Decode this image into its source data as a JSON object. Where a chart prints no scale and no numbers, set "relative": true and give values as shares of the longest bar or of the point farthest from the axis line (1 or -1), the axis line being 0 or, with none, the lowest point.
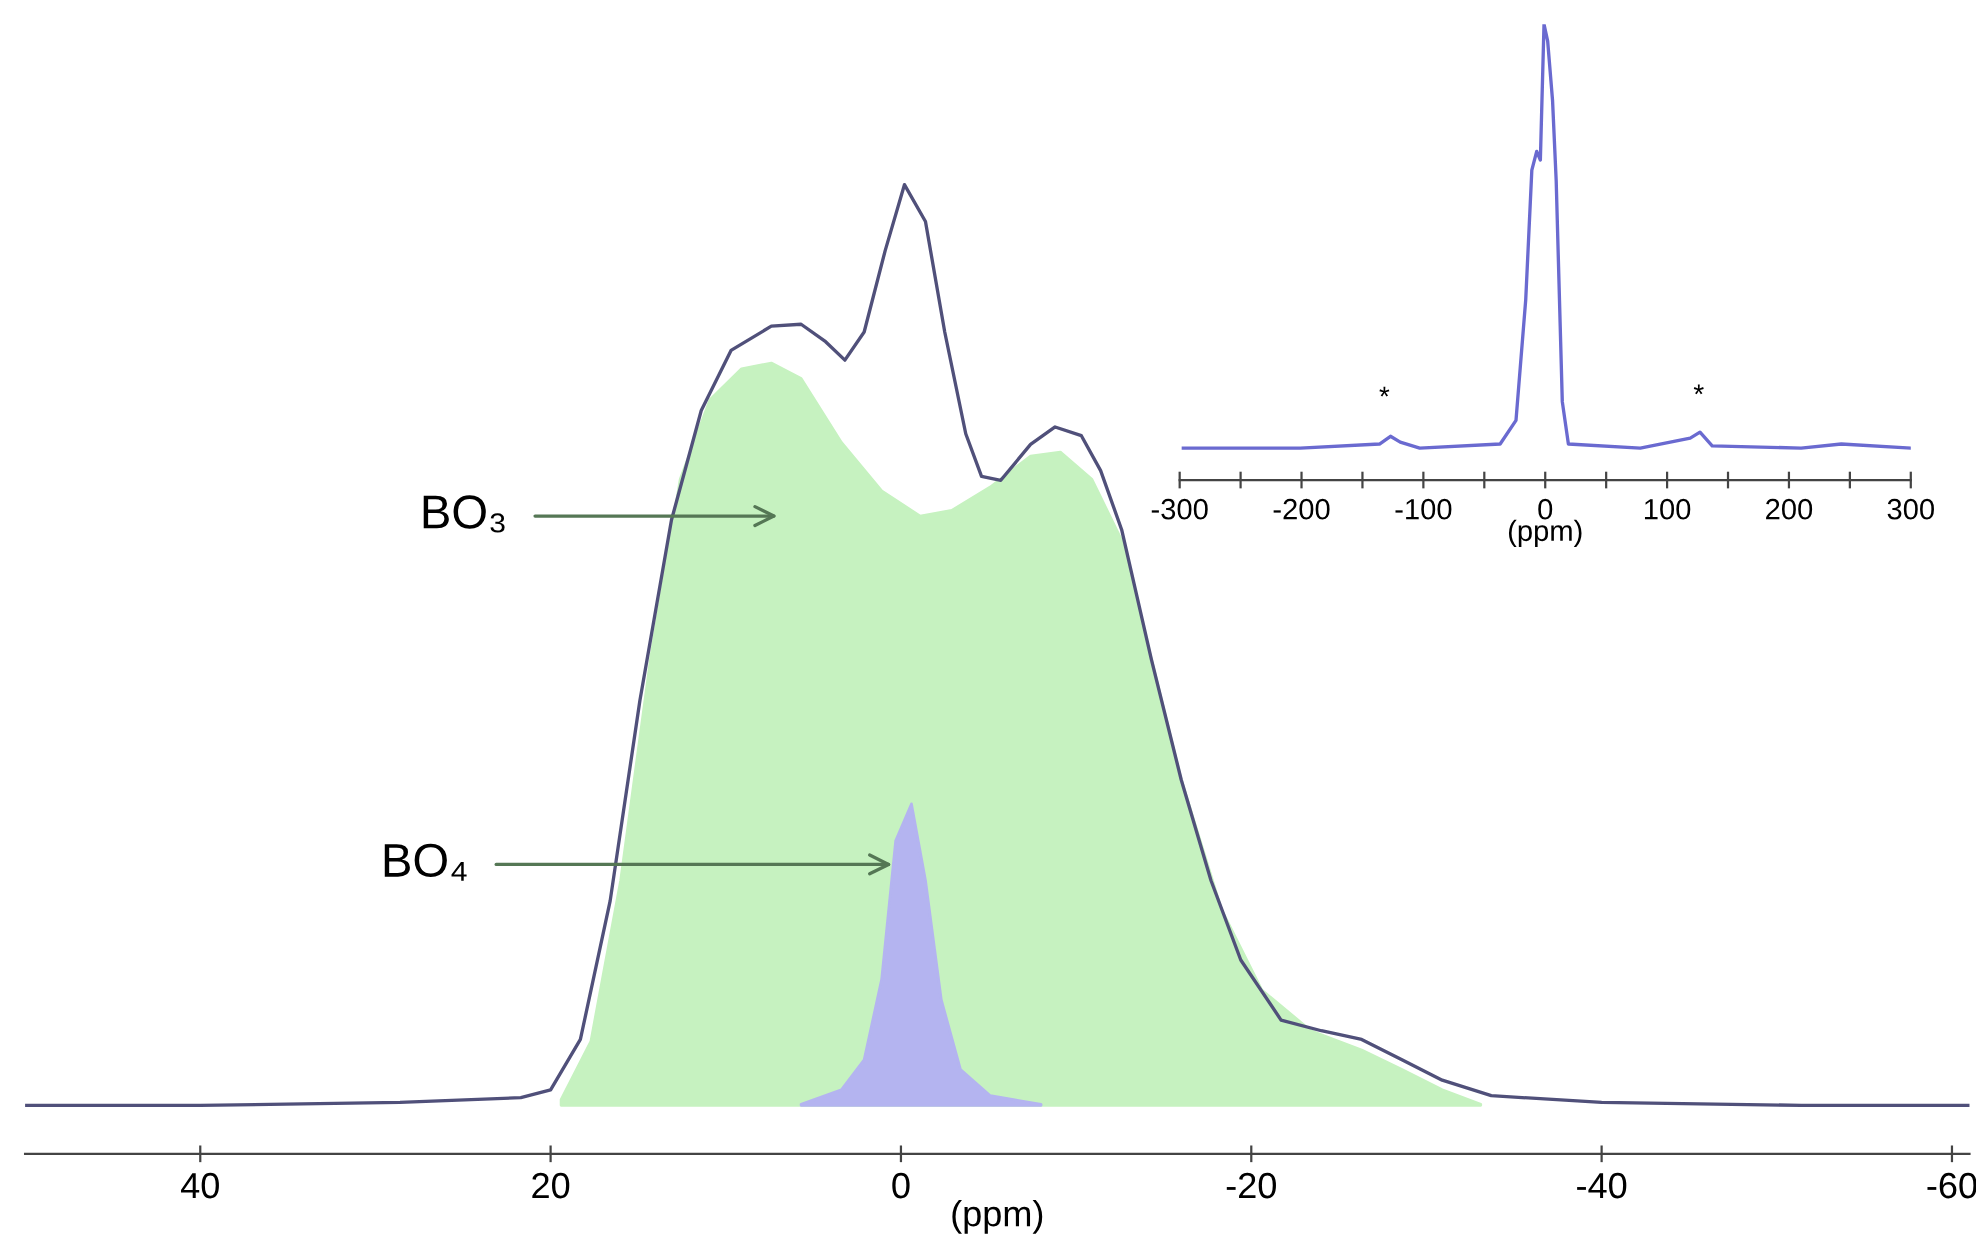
{
  "chart_data": [
    {
      "type": "area",
      "relative": true,
      "xlabel": "(ppm)",
      "xlim": [
        50,
        -61
      ],
      "xticks": [
        40,
        20,
        0,
        -20,
        -40,
        -60
      ],
      "tick_labels": "x",
      "grid": false,
      "legend": false,
      "annotations": [
        "BO₃",
        "BO₄"
      ],
      "series": [
        {
          "type": "area",
          "color": "#c6f2c0",
          "x": [
            19.4,
            17.7,
            16,
            14.3,
            12.6,
            10.9,
            9.1,
            7.4,
            5.7,
            3.4,
            1.1,
            -1.1,
            -2.9,
            -5.1,
            -7.4,
            -9.1,
            -10.9,
            -12.6,
            -14.3,
            -16,
            -18.3,
            -20.6,
            -23.4,
            -26.3,
            -28.6,
            -30.9,
            -33.1
          ],
          "values": [
            0.056,
            0.116,
            0.282,
            0.51,
            0.696,
            0.778,
            0.81,
            0.816,
            0.8,
            0.734,
            0.684,
            0.658,
            0.664,
            0.688,
            0.72,
            0.724,
            0.696,
            0.633,
            0.51,
            0.386,
            0.252,
            0.169,
            0.127,
            0.107,
            0.087,
            0.066,
            0.051
          ]
        },
        {
          "type": "area",
          "color": "#b4b4f0",
          "x": [
            5.7,
            3.4,
            2.1,
            1.1,
            0.3,
            -0.6,
            -1.4,
            -2.3,
            -3.4,
            -5.1,
            -8
          ],
          "values": [
            0.051,
            0.066,
            0.097,
            0.18,
            0.323,
            0.361,
            0.282,
            0.159,
            0.087,
            0.06,
            0.051
          ]
        },
        {
          "type": "line",
          "color": "#50507a",
          "x": [
            50,
            40,
            28.6,
            21.7,
            20,
            18.3,
            16.6,
            14.9,
            13.1,
            11.4,
            9.7,
            7.4,
            5.7,
            4.3,
            3.2,
            2.1,
            0.9,
            -0.2,
            -1.4,
            -2.5,
            -3.7,
            -4.6,
            -5.7,
            -7.4,
            -8.8,
            -10.3,
            -11.4,
            -12.6,
            -14.3,
            -16,
            -17.7,
            -19.4,
            -21.7,
            -24,
            -26.3,
            -28.6,
            -30.9,
            -33.7,
            -40,
            -51.4,
            -61
          ],
          "values": [
            0.05,
            0.05,
            0.053,
            0.058,
            0.066,
            0.118,
            0.261,
            0.468,
            0.654,
            0.767,
            0.829,
            0.854,
            0.856,
            0.838,
            0.819,
            0.848,
            0.932,
            1,
            0.962,
            0.848,
            0.743,
            0.699,
            0.695,
            0.732,
            0.75,
            0.741,
            0.705,
            0.644,
            0.51,
            0.386,
            0.282,
            0.2,
            0.138,
            0.127,
            0.118,
            0.097,
            0.076,
            0.06,
            0.053,
            0.05,
            0.05
          ]
        }
      ]
    },
    {
      "type": "line",
      "relative": true,
      "xlabel": "(ppm)",
      "xlim": [
        -300,
        300
      ],
      "tick_labels": "x",
      "grid": false,
      "legend": false,
      "xticks": [
        -300,
        {
          "value": -250,
          "label": null
        },
        -200,
        {
          "value": -150,
          "label": null
        },
        -100,
        {
          "value": -50,
          "label": null
        },
        0,
        {
          "value": 50,
          "label": null
        },
        100,
        {
          "value": 150,
          "label": null
        },
        200,
        {
          "value": 250,
          "label": null
        },
        300
      ],
      "annotations": [
        "*",
        "*"
      ],
      "series": [
        {
          "color": "#6a6ad0",
          "x": [
            -297,
            -201,
            -136,
            -127,
            -119,
            -103,
            -37,
            -24,
            -16,
            -11,
            -7,
            -4,
            -1,
            2,
            6,
            9,
            14,
            19,
            78,
            119,
            127,
            137,
            210,
            243,
            300
          ],
          "values": [
            0.07,
            0.07,
            0.079,
            0.096,
            0.083,
            0.07,
            0.079,
            0.131,
            0.396,
            0.68,
            0.721,
            0.702,
            1,
            0.963,
            0.833,
            0.656,
            0.172,
            0.079,
            0.07,
            0.092,
            0.105,
            0.075,
            0.07,
            0.079,
            0.07
          ]
        }
      ]
    }
  ]
}
